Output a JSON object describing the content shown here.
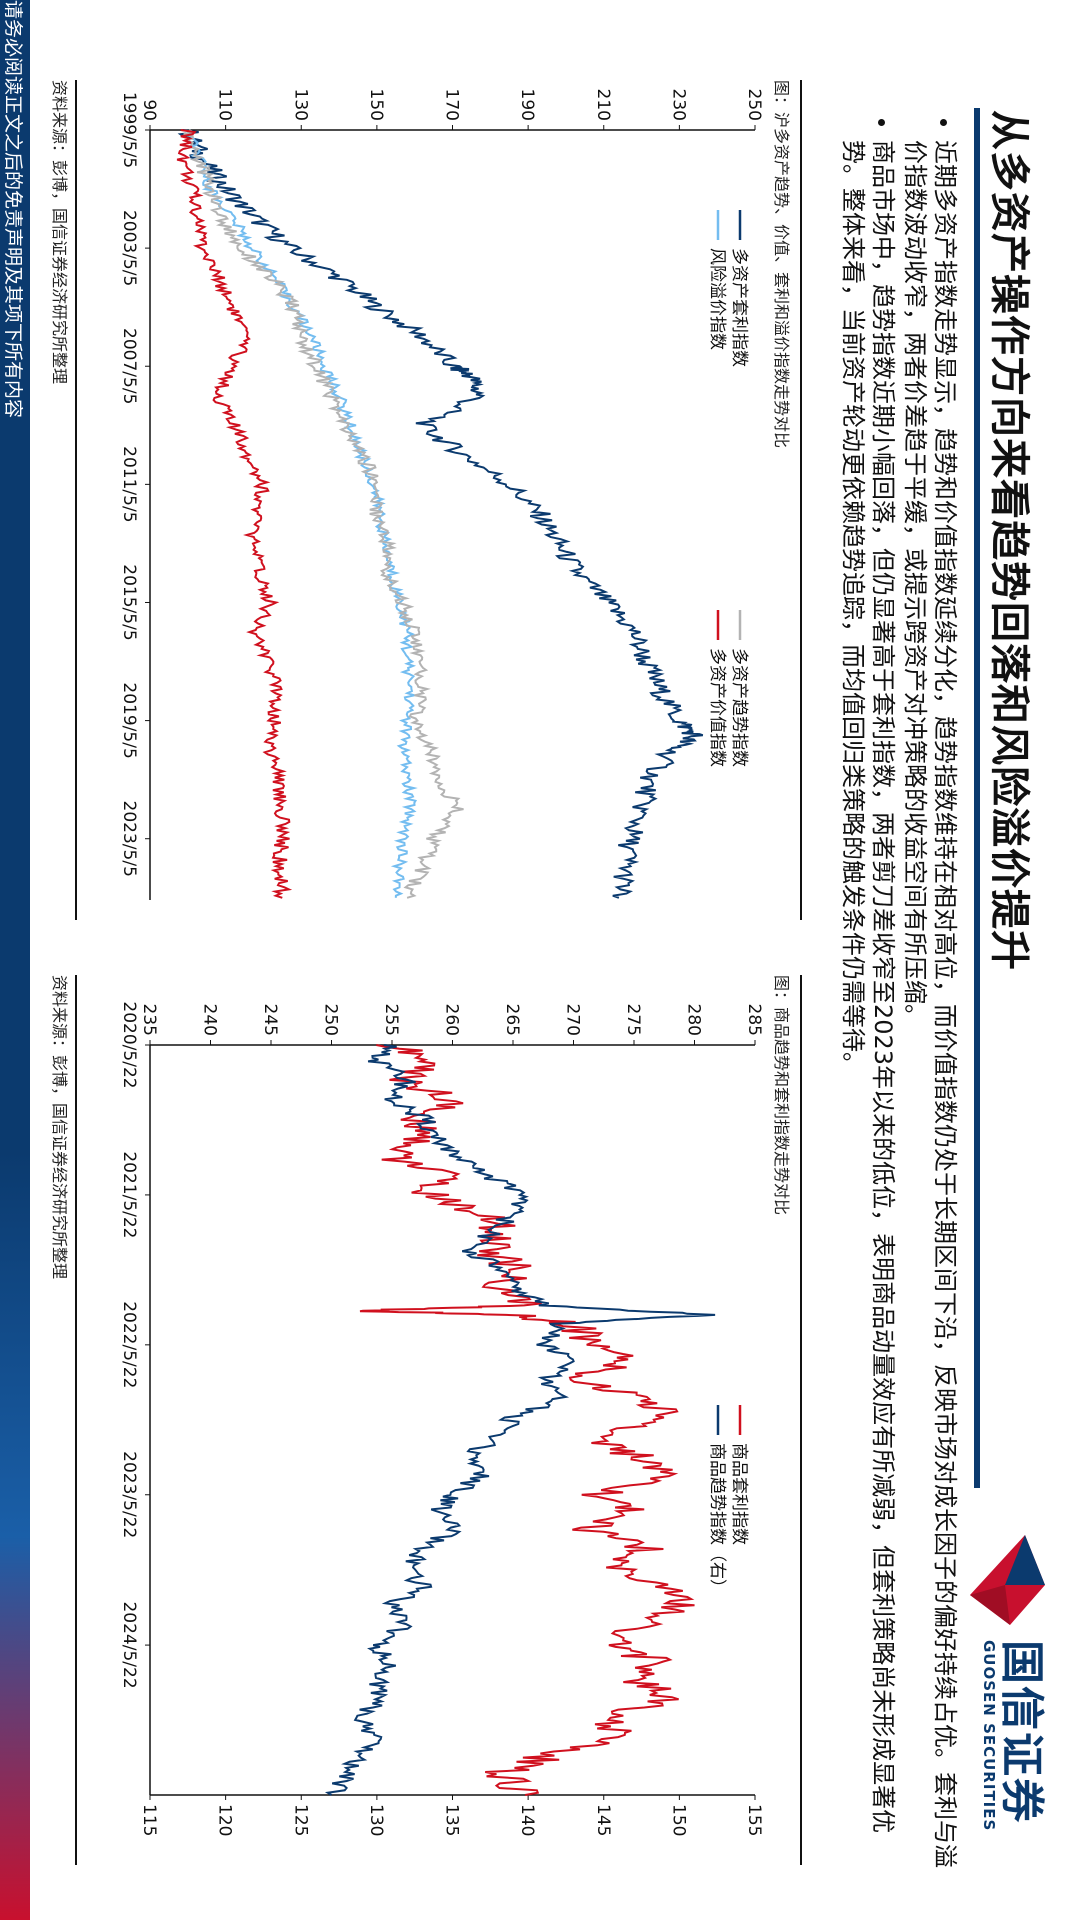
{
  "title": "从多资产操作方向来看趋势回落和风险溢价提升",
  "logo": {
    "cn": "国信证券",
    "en": "GUOSEN SECURITIES"
  },
  "bullets": [
    "近期多资产指数走势显示，趋势和价值指数延续分化，趋势指数维持在相对高位，而价值指数仍处于长期区间下沿，反映市场对成长因子的偏好持续占优。套利与溢价指数波动收窄，两者价差趋于平缓，或提示跨资产对冲策略的收益空间有所压缩。",
    "商品市场中，趋势指数近期小幅回落，但仍显著高于套利指数，两者剪刀差收窄至2023年以来的低位，表明商品动量效应有所减弱，但套利策略尚未形成显著优势。整体来看，当前资产轮动更依赖趋势追踪，而均值回归类策略的触发条件仍需等待。"
  ],
  "footer": "请务必阅读正文之后的免责声明及其项下所有内容",
  "colors": {
    "navy": "#0b3a6e",
    "lightblue": "#74bdf0",
    "gray": "#b3b3b3",
    "red": "#d0101e"
  },
  "chart_data": [
    {
      "type": "line",
      "caption": "图：沪多资产趋势、价值、套利和溢价指数走势对比",
      "source": "资料来源：彭博，国信证券经济研究所整理",
      "x_ticks": [
        "1999/5/5",
        "2003/5/5",
        "2007/5/5",
        "2011/5/5",
        "2015/5/5",
        "2019/5/5",
        "2023/5/5"
      ],
      "x_range": [
        "1999/5/5",
        "2025/6/1"
      ],
      "ylim": [
        90,
        250
      ],
      "y_ticks": [
        90,
        110,
        130,
        150,
        170,
        190,
        210,
        230,
        250
      ],
      "legend": "top-inside, two columns",
      "series": [
        {
          "name": "多资产套利指数",
          "color": "#0b3a6e",
          "x": [
            "1999/5/5",
            "2000/5/5",
            "2001/5/5",
            "2002/5/5",
            "2003/5/5",
            "2004/5/5",
            "2005/5/5",
            "2006/5/5",
            "2007/5/5",
            "2007/9/1",
            "2008/5/5",
            "2009/5/5",
            "2010/5/5",
            "2011/5/5",
            "2012/5/5",
            "2013/5/5",
            "2014/5/5",
            "2015/5/5",
            "2016/5/5",
            "2017/5/5",
            "2018/5/5",
            "2019/5/5",
            "2019/11/1",
            "2020/5/5",
            "2021/5/5",
            "2022/5/5",
            "2023/5/5",
            "2024/5/5",
            "2025/5/5"
          ],
          "values": [
            100,
            104,
            110,
            118,
            127,
            140,
            150,
            162,
            170,
            175,
            177,
            162,
            173,
            185,
            193,
            198,
            203,
            211,
            218,
            221,
            225,
            230,
            234,
            228,
            222,
            220,
            217,
            216,
            214
          ]
        },
        {
          "name": "风险溢价指数",
          "color": "#74bdf0",
          "x": [
            "1999/5/5",
            "2000/5/5",
            "2001/5/5",
            "2002/5/5",
            "2003/5/5",
            "2004/5/5",
            "2005/5/5",
            "2006/5/5",
            "2007/5/5",
            "2008/5/5",
            "2009/5/5",
            "2010/5/5",
            "2011/5/5",
            "2012/5/5",
            "2013/5/5",
            "2014/5/5",
            "2015/5/5",
            "2016/5/5",
            "2017/5/5",
            "2018/5/5",
            "2019/5/5",
            "2020/5/5",
            "2021/5/5",
            "2022/5/5",
            "2023/5/5",
            "2024/5/5",
            "2025/5/5"
          ],
          "values": [
            100,
            103,
            106,
            112,
            117,
            123,
            128,
            133,
            136,
            140,
            143,
            146,
            149,
            151,
            152,
            154,
            156,
            158,
            158,
            159,
            158,
            157,
            158,
            159,
            157,
            156,
            155
          ]
        },
        {
          "name": "多资产趋势指数",
          "color": "#b3b3b3",
          "x": [
            "1999/5/5",
            "2000/5/5",
            "2001/5/5",
            "2002/5/5",
            "2003/5/5",
            "2004/5/5",
            "2005/5/5",
            "2006/5/5",
            "2007/5/5",
            "2008/5/5",
            "2009/5/5",
            "2010/5/5",
            "2011/5/5",
            "2012/5/5",
            "2013/5/5",
            "2014/5/5",
            "2015/5/5",
            "2016/5/5",
            "2017/5/5",
            "2018/5/5",
            "2019/5/5",
            "2020/5/5",
            "2021/5/5",
            "2022/5/5",
            "2023/5/5",
            "2024/5/5",
            "2025/5/5"
          ],
          "values": [
            100,
            103,
            106,
            109,
            114,
            122,
            128,
            130,
            134,
            138,
            141,
            146,
            150,
            150,
            153,
            152,
            157,
            160,
            161,
            162,
            160,
            164,
            167,
            171,
            165,
            162,
            158
          ]
        },
        {
          "name": "多资产价值指数",
          "color": "#d0101e",
          "x": [
            "1999/5/5",
            "2000/5/5",
            "2001/5/5",
            "2002/5/5",
            "2003/5/5",
            "2004/5/5",
            "2005/5/5",
            "2006/5/5",
            "2007/5/5",
            "2008/5/5",
            "2009/5/5",
            "2010/5/5",
            "2011/5/5",
            "2012/5/5",
            "2013/5/5",
            "2014/5/5",
            "2015/5/5",
            "2016/5/5",
            "2017/5/5",
            "2018/5/5",
            "2019/5/5",
            "2020/5/5",
            "2021/5/5",
            "2022/5/5",
            "2023/5/5",
            "2024/5/5",
            "2025/5/5"
          ],
          "values": [
            100,
            99,
            101,
            103,
            104,
            108,
            112,
            115,
            112,
            108,
            112,
            116,
            120,
            118,
            117,
            119,
            122,
            118,
            121,
            124,
            123,
            122,
            124,
            125,
            125,
            124,
            125
          ]
        }
      ]
    },
    {
      "type": "line",
      "caption": "图：商品趋势和套利指数走势对比",
      "source": "资料来源：彭博，国信证券经济研究所整理",
      "x_ticks": [
        "2020/5/22",
        "2021/5/22",
        "2022/5/22",
        "2023/5/22",
        "2024/5/22"
      ],
      "x_range": [
        "2020/5/22",
        "2025/5/22"
      ],
      "ylim_left": [
        235,
        285
      ],
      "y_ticks_left": [
        235,
        240,
        245,
        250,
        255,
        260,
        265,
        270,
        275,
        280,
        285
      ],
      "ylim_right": [
        115,
        155
      ],
      "y_ticks_right": [
        115,
        120,
        125,
        130,
        135,
        140,
        145,
        150,
        155
      ],
      "legend": "top-inside",
      "series": [
        {
          "name": "商品套利指数",
          "axis": "left",
          "color": "#d0101e",
          "x": [
            "2020/5/22",
            "2020/7/1",
            "2020/8/15",
            "2020/10/1",
            "2020/11/15",
            "2021/1/1",
            "2021/2/15",
            "2021/4/1",
            "2021/5/22",
            "2021/7/1",
            "2021/8/15",
            "2021/10/1",
            "2021/11/15",
            "2022/1/1",
            "2022/2/15",
            "2022/2/28",
            "2022/3/10",
            "2022/4/1",
            "2022/5/22",
            "2022/7/1",
            "2022/8/15",
            "2022/10/1",
            "2022/11/15",
            "2023/1/1",
            "2023/2/15",
            "2023/4/1",
            "2023/5/22",
            "2023/7/1",
            "2023/8/15",
            "2023/10/1",
            "2023/11/15",
            "2024/1/1",
            "2024/2/15",
            "2024/4/1",
            "2024/5/22",
            "2024/7/1",
            "2024/8/15",
            "2024/10/1",
            "2024/11/15",
            "2025/1/1",
            "2025/2/15",
            "2025/4/1",
            "2025/5/22"
          ],
          "values": [
            255,
            258,
            256,
            260,
            257,
            258,
            255,
            259,
            258,
            262,
            264,
            263,
            265,
            264,
            266,
            252,
            265,
            270,
            272,
            274,
            270,
            276,
            278,
            272,
            275,
            277,
            272,
            275,
            271,
            276,
            274,
            277,
            279,
            276,
            273,
            277,
            275,
            278,
            272,
            274,
            268,
            264,
            266
          ]
        },
        {
          "name": "商品趋势指数（右）",
          "axis": "right",
          "color": "#0b3a6e",
          "x": [
            "2020/5/22",
            "2020/7/1",
            "2020/8/15",
            "2020/10/1",
            "2020/11/15",
            "2021/1/1",
            "2021/2/15",
            "2021/4/1",
            "2021/5/22",
            "2021/7/1",
            "2021/8/15",
            "2021/10/1",
            "2021/11/15",
            "2022/1/1",
            "2022/2/15",
            "2022/3/10",
            "2022/4/1",
            "2022/5/22",
            "2022/7/1",
            "2022/8/15",
            "2022/10/1",
            "2022/11/15",
            "2023/1/1",
            "2023/2/15",
            "2023/4/1",
            "2023/5/22",
            "2023/7/1",
            "2023/8/15",
            "2023/10/1",
            "2023/11/15",
            "2024/1/1",
            "2024/2/15",
            "2024/4/1",
            "2024/5/22",
            "2024/7/1",
            "2024/8/15",
            "2024/10/1",
            "2024/11/15",
            "2025/1/1",
            "2025/2/15",
            "2025/4/1",
            "2025/5/22"
          ],
          "values": [
            131,
            130,
            132,
            131,
            133,
            134,
            135,
            137,
            140,
            139,
            138,
            136,
            138,
            139,
            141,
            152,
            142,
            141,
            143,
            141,
            142,
            139,
            138,
            136,
            137,
            135,
            134,
            135,
            133,
            132,
            133,
            131,
            132,
            130,
            131,
            130,
            130,
            129,
            130,
            129,
            128,
            127
          ]
        }
      ]
    }
  ]
}
